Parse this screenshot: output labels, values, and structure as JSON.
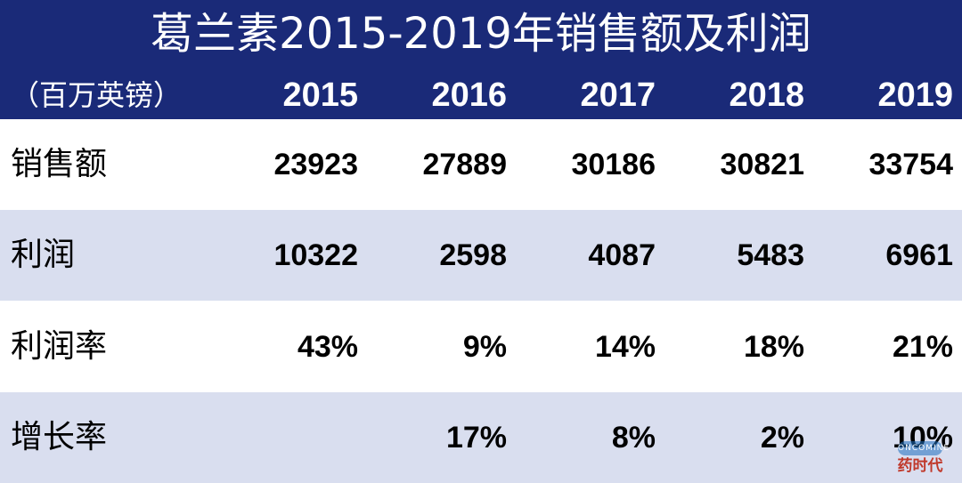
{
  "chart_data": {
    "type": "table",
    "title": "葛兰素2015-2019年销售额及利润",
    "unit": "（百万英镑）",
    "columns": [
      "2015",
      "2016",
      "2017",
      "2018",
      "2019"
    ],
    "rows": [
      {
        "label": "销售额",
        "values": [
          "23923",
          "27889",
          "30186",
          "30821",
          "33754"
        ]
      },
      {
        "label": "利润",
        "values": [
          "10322",
          "2598",
          "4087",
          "5483",
          "6961"
        ]
      },
      {
        "label": "利润率",
        "values": [
          "43%",
          "9%",
          "14%",
          "18%",
          "21%"
        ]
      },
      {
        "label": "增长率",
        "values": [
          "",
          "17%",
          "8%",
          "2%",
          "10%"
        ]
      }
    ]
  },
  "colors": {
    "header_bg": "#1a2a78",
    "alt_row_bg": "#d9deef"
  },
  "watermark": {
    "badge": "ONCOMINE",
    "text": "药时代"
  }
}
